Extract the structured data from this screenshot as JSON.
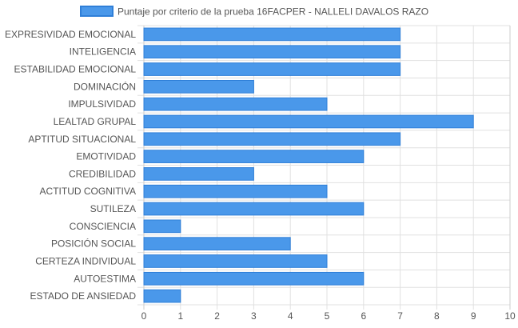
{
  "chart_data": {
    "type": "bar",
    "orientation": "horizontal",
    "categories": [
      "EXPRESIVIDAD EMOCIONAL",
      "INTELIGENCIA",
      "ESTABILIDAD EMOCIONAL",
      "DOMINACIÓN",
      "IMPULSIVIDAD",
      "LEALTAD GRUPAL",
      "APTITUD SITUACIONAL",
      "EMOTIVIDAD",
      "CREDIBILIDAD",
      "ACTITUD COGNITIVA",
      "SUTILEZA",
      "CONSCIENCIA",
      "POSICIÓN SOCIAL",
      "CERTEZA INDIVIDUAL",
      "AUTOESTIMA",
      "ESTADO DE ANSIEDAD"
    ],
    "series": [
      {
        "name": "Puntaje por criterio de la prueba 16FACPER - NALLELI DAVALOS RAZO",
        "values": [
          7,
          7,
          7,
          3,
          5,
          9,
          7,
          6,
          3,
          5,
          6,
          1,
          4,
          5,
          6,
          1
        ]
      }
    ],
    "xlim": [
      0,
      10
    ],
    "xticks": [
      "0",
      "1",
      "2",
      "3",
      "4",
      "5",
      "6",
      "7",
      "8",
      "9",
      "10"
    ],
    "grid": true,
    "legend_position": "top",
    "colors": {
      "bar_fill": "#4a98ea",
      "bar_border": "#2f7fd8",
      "grid": "#e0e0e0",
      "axis": "#cccccc"
    }
  }
}
